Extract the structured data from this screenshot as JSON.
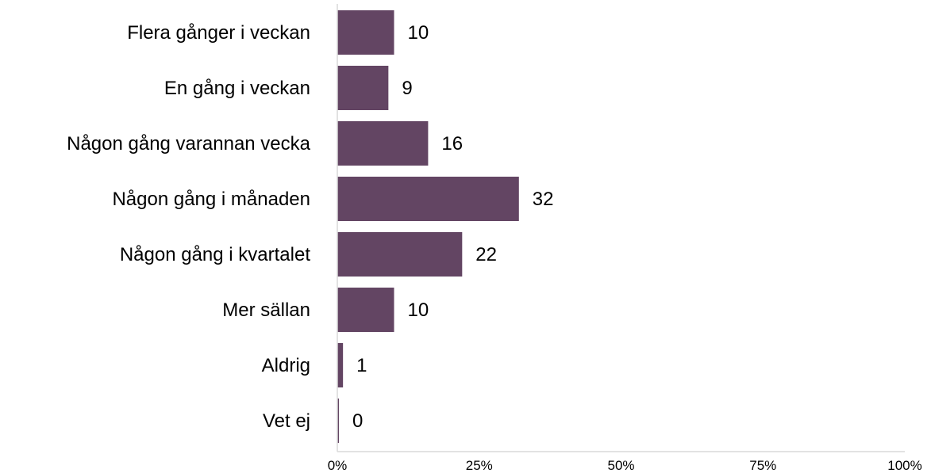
{
  "chart_data": {
    "type": "bar",
    "orientation": "horizontal",
    "categories": [
      "Flera gånger i veckan",
      "En gång i veckan",
      "Någon gång varannan vecka",
      "Någon gång i månaden",
      "Någon gång i kvartalet",
      "Mer sällan",
      "Aldrig",
      "Vet ej"
    ],
    "values": [
      10,
      9,
      16,
      32,
      22,
      10,
      1,
      0
    ],
    "value_labels": [
      "10",
      "9",
      "16",
      "32",
      "22",
      "10",
      "1",
      "0"
    ],
    "xlim": [
      0,
      100
    ],
    "x_ticks": [
      0,
      25,
      50,
      75,
      100
    ],
    "x_tick_labels": [
      "0%",
      "25%",
      "50%",
      "75%",
      "100%"
    ],
    "title": "",
    "xlabel": "",
    "ylabel": "",
    "grid": false,
    "legend": "none",
    "colors": {
      "bar": "#634563",
      "axis": "#d9d9d9",
      "text": "#000000"
    }
  }
}
